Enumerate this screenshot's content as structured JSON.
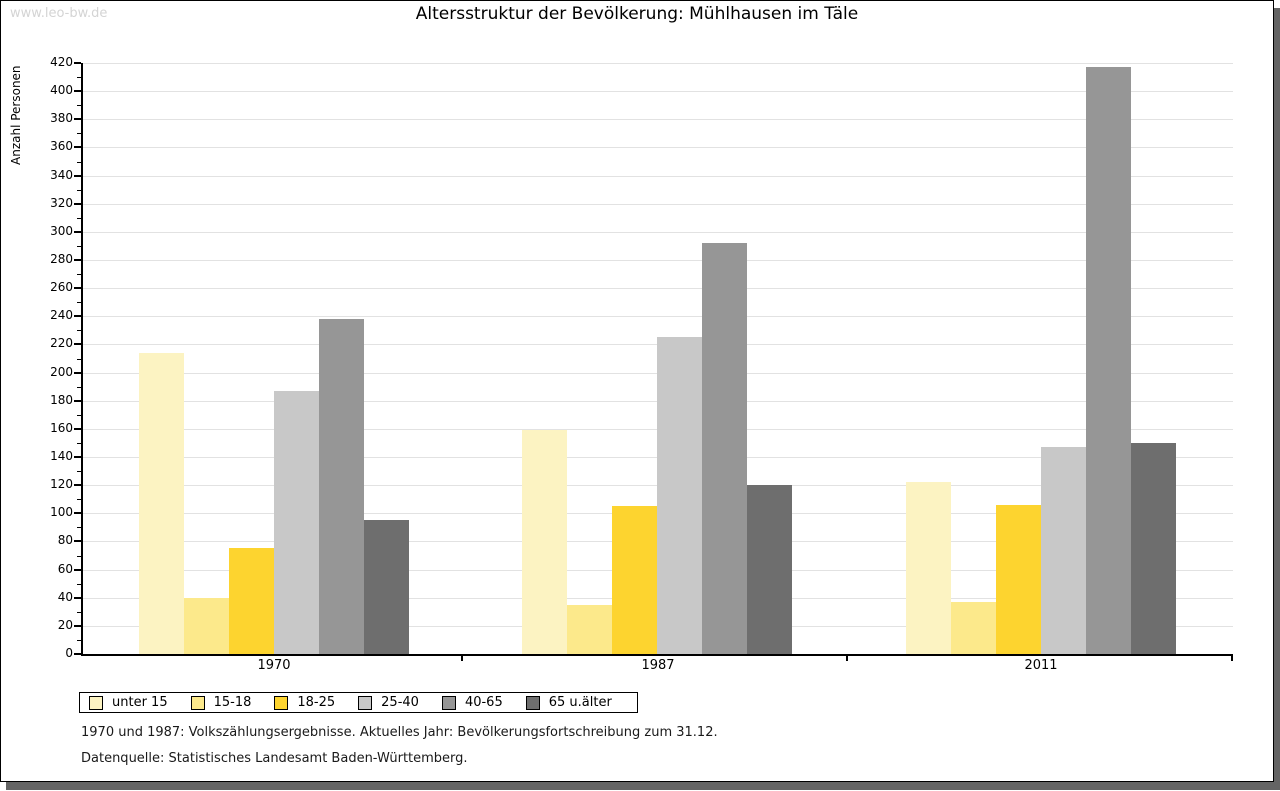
{
  "page": {
    "watermark": "www.leo-bw.de",
    "title": "Altersstruktur der Bevölkerung: Mühlhausen im Täle",
    "footnotes": [
      "1970 und 1987: Volkszählungsergebnisse. Aktuelles Jahr: Bevölkerungsfortschreibung zum 31.12.",
      "Datenquelle: Statistisches Landesamt Baden-Württemberg."
    ]
  },
  "chart_data": {
    "type": "bar",
    "title": "Altersstruktur der Bevölkerung: Mühlhausen im Täle",
    "xlabel": "",
    "ylabel": "Anzahl Personen",
    "categories": [
      "1970",
      "1987",
      "2011"
    ],
    "series": [
      {
        "name": "unter 15",
        "color": "#FCF3C2",
        "values": [
          214,
          159,
          122
        ]
      },
      {
        "name": "15-18",
        "color": "#FCE98B",
        "values": [
          40,
          35,
          37
        ]
      },
      {
        "name": "18-25",
        "color": "#FDD42F",
        "values": [
          75,
          105,
          106
        ]
      },
      {
        "name": "25-40",
        "color": "#C8C8C8",
        "values": [
          187,
          225,
          147
        ]
      },
      {
        "name": "40-65",
        "color": "#969696",
        "values": [
          238,
          292,
          417
        ]
      },
      {
        "name": "65 u.älter",
        "color": "#6E6E6E",
        "values": [
          95,
          120,
          150
        ]
      }
    ],
    "ylim": [
      0,
      420
    ],
    "ytick_step": 20,
    "yminor_step": 10,
    "grid": true,
    "legend_position": "bottom"
  },
  "colors": {
    "grid": "#e2e2e2",
    "axis": "#000000",
    "page_shadow": "#646464",
    "watermark": "#d4d4d4"
  }
}
